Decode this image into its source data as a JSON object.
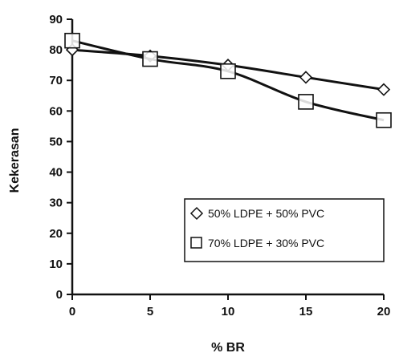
{
  "chart_data": {
    "type": "line",
    "xlabel": "% BR",
    "ylabel": "Kekerasan",
    "xlim": [
      0,
      20
    ],
    "ylim": [
      0,
      90
    ],
    "x_ticks": [
      0,
      5,
      10,
      15,
      20
    ],
    "y_ticks": [
      0,
      10,
      20,
      30,
      40,
      50,
      60,
      70,
      80,
      90
    ],
    "grid": false,
    "legend_position": "lower-right",
    "x": [
      0,
      5,
      10,
      15,
      20
    ],
    "series": [
      {
        "name": "50% LDPE + 50% PVC",
        "marker": "diamond",
        "values": [
          80,
          78,
          75,
          71,
          67
        ]
      },
      {
        "name": "70% LDPE + 30% PVC",
        "marker": "square",
        "values": [
          83,
          77,
          73,
          63,
          57
        ]
      }
    ]
  }
}
